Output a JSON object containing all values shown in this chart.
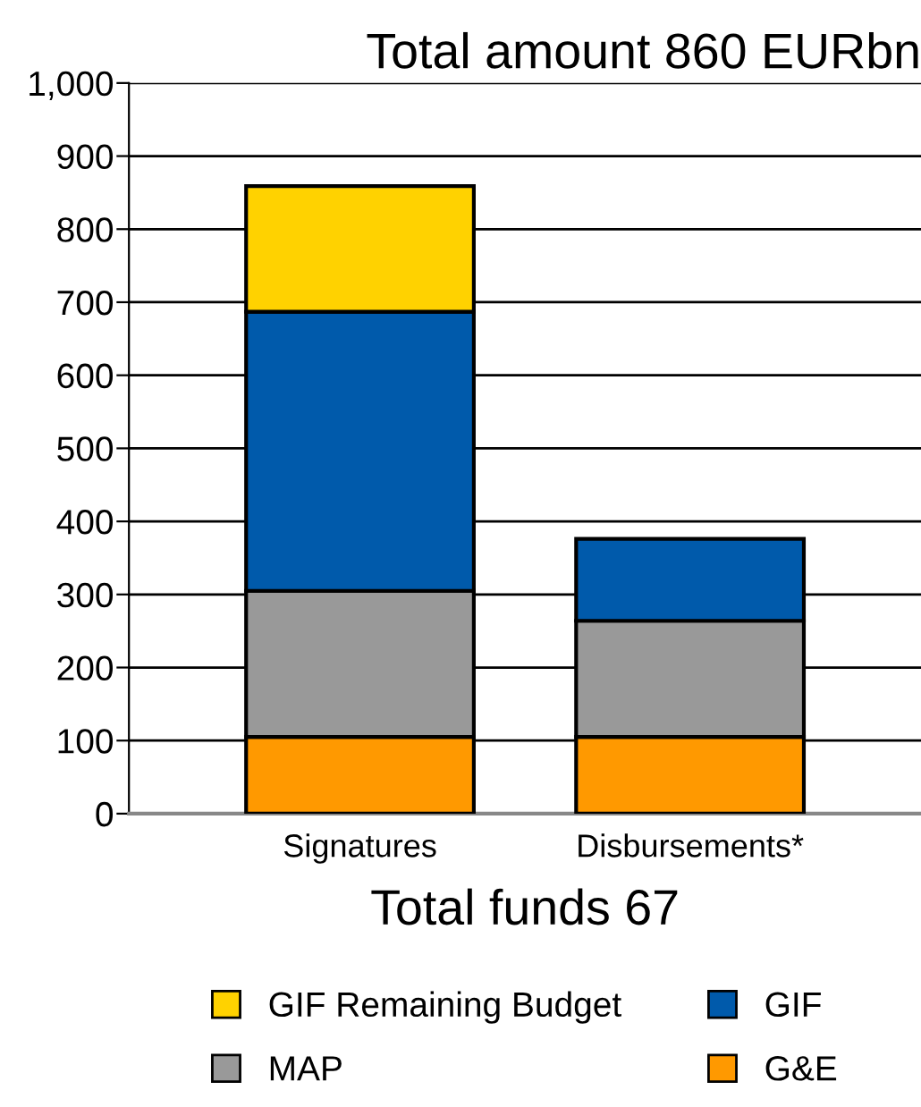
{
  "chart_data": {
    "type": "bar",
    "stacked": true,
    "title": "Total amount 860 EURbn",
    "xlabel": "Total funds 67",
    "categories": [
      "Signatures",
      "Disbursements*"
    ],
    "series": [
      {
        "name": "G&E",
        "color": "#ff9900",
        "values": [
          105,
          105
        ]
      },
      {
        "name": "MAP",
        "color": "#999999",
        "values": [
          200,
          159
        ]
      },
      {
        "name": "GIF",
        "color": "#005aab",
        "values": [
          382,
          112
        ]
      },
      {
        "name": "GIF Remaining Budget",
        "color": "#ffd200",
        "values": [
          172,
          null
        ]
      }
    ],
    "ylim": [
      0,
      1000
    ],
    "yticks": [
      0,
      100,
      200,
      300,
      400,
      500,
      600,
      700,
      800,
      900,
      {
        "value": 1000,
        "label": "1,000"
      }
    ],
    "grid": "y",
    "legend": "bottom"
  }
}
